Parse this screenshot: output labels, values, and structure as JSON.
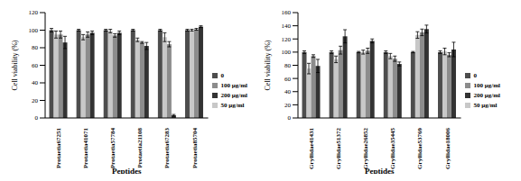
{
  "chart_data": [
    {
      "type": "bar",
      "x_label": "Peptides",
      "y_label": "Cell viability (%)",
      "legend": "right",
      "grid": false,
      "categories": [
        "Protaetia67251",
        "Protaetia41071",
        "Protaetia57784",
        "Protaetia21108",
        "Protaetia67283",
        "Protaetia85704"
      ],
      "ylim": [
        0,
        120
      ],
      "yticks": [
        0,
        20,
        40,
        60,
        80,
        100,
        120
      ],
      "series": [
        {
          "name": "0",
          "color": "#4d4d4d",
          "values": [
            100,
            100,
            100,
            100,
            100,
            100
          ],
          "errors": [
            2,
            1,
            1,
            1,
            1,
            1
          ]
        },
        {
          "name": "50 μg/ml",
          "color": "#c8c8c8",
          "values": [
            95,
            92,
            99,
            89,
            92,
            100
          ],
          "errors": [
            4,
            3,
            2,
            2,
            5,
            1
          ]
        },
        {
          "name": "100 μg/ml",
          "color": "#8c8c8c",
          "values": [
            95,
            95,
            94,
            86,
            84,
            101
          ],
          "errors": [
            4,
            3,
            2,
            1,
            3,
            1
          ]
        },
        {
          "name": "200 μg/ml",
          "color": "#333333",
          "values": [
            86,
            97,
            97,
            82,
            3,
            104
          ],
          "errors": [
            7,
            2,
            2,
            4,
            1,
            1
          ]
        }
      ]
    },
    {
      "type": "bar",
      "x_label": "Peptides",
      "y_label": "Cell viability (%)",
      "legend": "right",
      "grid": false,
      "categories": [
        "Gryllidae41431",
        "Gryllidae51372",
        "Gryllidae26852",
        "Gryllidae35445",
        "Gryllidae53769",
        "Gryllidae18006"
      ],
      "ylim": [
        0,
        160
      ],
      "yticks": [
        0,
        20,
        40,
        60,
        80,
        100,
        120,
        140,
        160
      ],
      "series": [
        {
          "name": "0",
          "color": "#4d4d4d",
          "values": [
            100,
            100,
            100,
            100,
            100,
            100
          ],
          "errors": [
            2,
            2,
            1,
            2,
            1,
            2
          ]
        },
        {
          "name": "50 μg/ml",
          "color": "#c8c8c8",
          "values": [
            75,
            89,
            100,
            94,
            126,
            101
          ],
          "errors": [
            8,
            5,
            3,
            4,
            5,
            5
          ]
        },
        {
          "name": "100 μg/ml",
          "color": "#8c8c8c",
          "values": [
            94,
            103,
            102,
            90,
            130,
            96
          ],
          "errors": [
            2,
            6,
            4,
            4,
            5,
            3
          ]
        },
        {
          "name": "200 μg/ml",
          "color": "#333333",
          "values": [
            79,
            124,
            117,
            82,
            135,
            104
          ],
          "errors": [
            10,
            10,
            3,
            3,
            6,
            11
          ]
        }
      ]
    }
  ]
}
